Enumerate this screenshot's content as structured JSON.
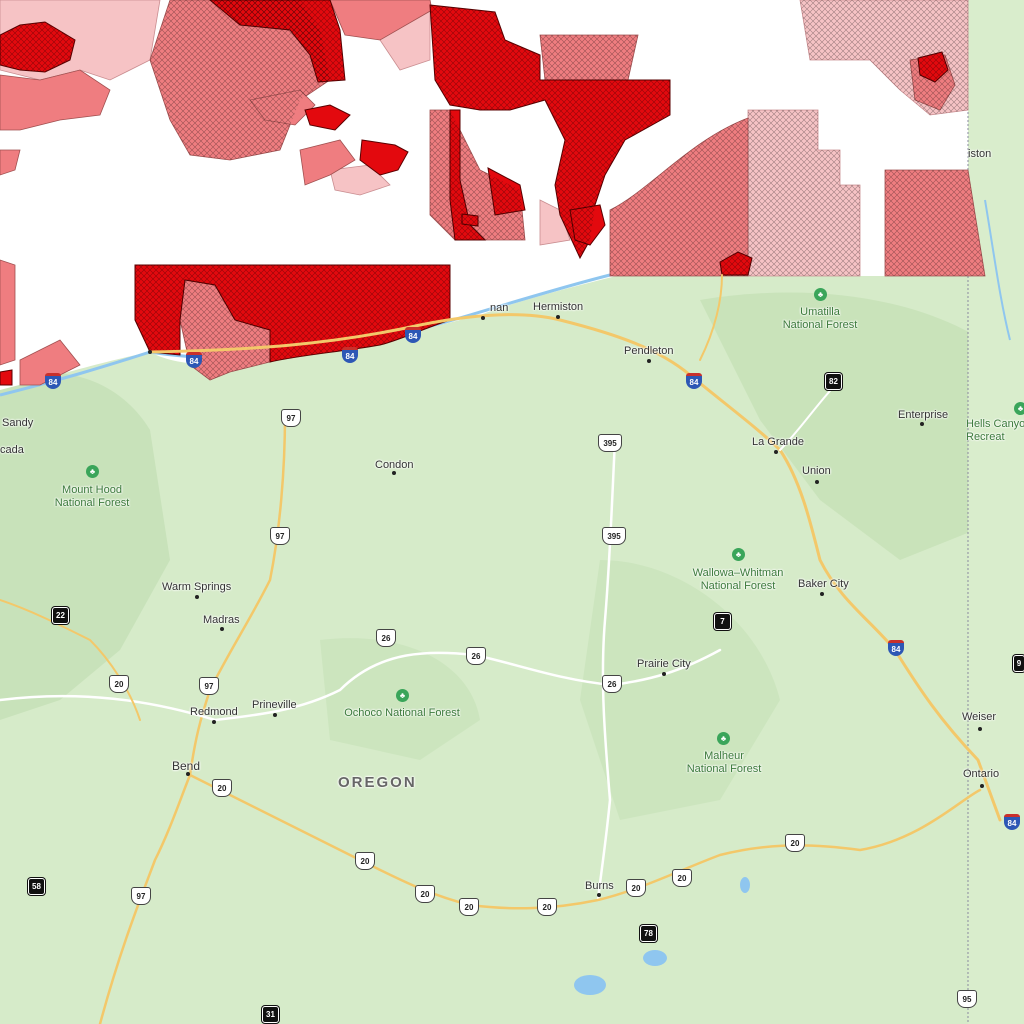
{
  "map": {
    "state_label": "OREGON",
    "colors": {
      "land": "#d6ebc9",
      "dark_red": "#e3090e",
      "mid_red": "#ef7d80",
      "light_red": "#f6c3c5",
      "road_major": "#f3c86a",
      "road_minor": "#ffffff",
      "water": "#8fc6ef"
    },
    "cities": [
      {
        "id": "hermiston",
        "name": "Hermiston"
      },
      {
        "id": "pendleton",
        "name": "Pendleton"
      },
      {
        "id": "sandy",
        "name": "Sandy"
      },
      {
        "id": "cascade",
        "name": "cada"
      },
      {
        "id": "condon",
        "name": "Condon"
      },
      {
        "id": "enterprise",
        "name": "Enterprise"
      },
      {
        "id": "la-grande",
        "name": "La Grande"
      },
      {
        "id": "union",
        "name": "Union"
      },
      {
        "id": "baker-city",
        "name": "Baker City"
      },
      {
        "id": "warm-springs",
        "name": "Warm Springs"
      },
      {
        "id": "madras",
        "name": "Madras"
      },
      {
        "id": "prairie-city",
        "name": "Prairie City"
      },
      {
        "id": "redmond",
        "name": "Redmond"
      },
      {
        "id": "prineville",
        "name": "Prineville"
      },
      {
        "id": "bend",
        "name": "Bend"
      },
      {
        "id": "weiser",
        "name": "Weiser"
      },
      {
        "id": "ontario",
        "name": "Ontario"
      },
      {
        "id": "burns",
        "name": "Burns"
      },
      {
        "id": "lewiston",
        "name": "iston"
      },
      {
        "id": "umatilla-town",
        "name": "nan"
      }
    ],
    "forests": [
      {
        "id": "umatilla-nf",
        "line1": "Umatilla",
        "line2": "National Forest"
      },
      {
        "id": "mount-hood-nf",
        "line1": "Mount Hood",
        "line2": "National Forest"
      },
      {
        "id": "wallowa-whitman-nf",
        "line1": "Wallowa–Whitman",
        "line2": "National Forest"
      },
      {
        "id": "ochoco-nf",
        "line1": "Ochoco National Forest",
        "line2": ""
      },
      {
        "id": "malheur-nf",
        "line1": "Malheur",
        "line2": "National Forest"
      },
      {
        "id": "hells-canyon",
        "line1": "Hells Canyo",
        "line2": "Recreat"
      }
    ],
    "shields": [
      {
        "id": "i84-a",
        "type": "interstate",
        "num": "84"
      },
      {
        "id": "i84-b",
        "type": "interstate",
        "num": "84"
      },
      {
        "id": "i84-c",
        "type": "interstate",
        "num": "84"
      },
      {
        "id": "i84-d",
        "type": "interstate",
        "num": "84"
      },
      {
        "id": "i84-e",
        "type": "interstate",
        "num": "84"
      },
      {
        "id": "i84-f",
        "type": "interstate",
        "num": "84"
      },
      {
        "id": "i84-g",
        "type": "interstate",
        "num": "84"
      },
      {
        "id": "i84-h",
        "type": "interstate",
        "num": "84"
      },
      {
        "id": "us97-a",
        "type": "us",
        "num": "97"
      },
      {
        "id": "us97-b",
        "type": "us",
        "num": "97"
      },
      {
        "id": "us97-c",
        "type": "us",
        "num": "97"
      },
      {
        "id": "us97-d",
        "type": "us",
        "num": "97"
      },
      {
        "id": "us395-a",
        "type": "us",
        "num": "395"
      },
      {
        "id": "us395-b",
        "type": "us",
        "num": "395"
      },
      {
        "id": "us26-a",
        "type": "us",
        "num": "26"
      },
      {
        "id": "us26-b",
        "type": "us",
        "num": "26"
      },
      {
        "id": "us26-c",
        "type": "us",
        "num": "26"
      },
      {
        "id": "us20-a",
        "type": "us",
        "num": "20"
      },
      {
        "id": "us20-b",
        "type": "us",
        "num": "20"
      },
      {
        "id": "us20-c",
        "type": "us",
        "num": "20"
      },
      {
        "id": "us20-d",
        "type": "us",
        "num": "20"
      },
      {
        "id": "us20-e",
        "type": "us",
        "num": "20"
      },
      {
        "id": "us20-f",
        "type": "us",
        "num": "20"
      },
      {
        "id": "us20-g",
        "type": "us",
        "num": "20"
      },
      {
        "id": "us20-h",
        "type": "us",
        "num": "20"
      },
      {
        "id": "us20-i",
        "type": "us",
        "num": "20"
      },
      {
        "id": "us95",
        "type": "us",
        "num": "95"
      },
      {
        "id": "or82",
        "type": "state",
        "num": "82"
      },
      {
        "id": "or7",
        "type": "state",
        "num": "7"
      },
      {
        "id": "or22",
        "type": "state",
        "num": "22"
      },
      {
        "id": "or58",
        "type": "state",
        "num": "58"
      },
      {
        "id": "or78",
        "type": "state",
        "num": "78"
      },
      {
        "id": "or31",
        "type": "state",
        "num": "31"
      },
      {
        "id": "id9",
        "type": "state",
        "num": "9"
      }
    ]
  }
}
